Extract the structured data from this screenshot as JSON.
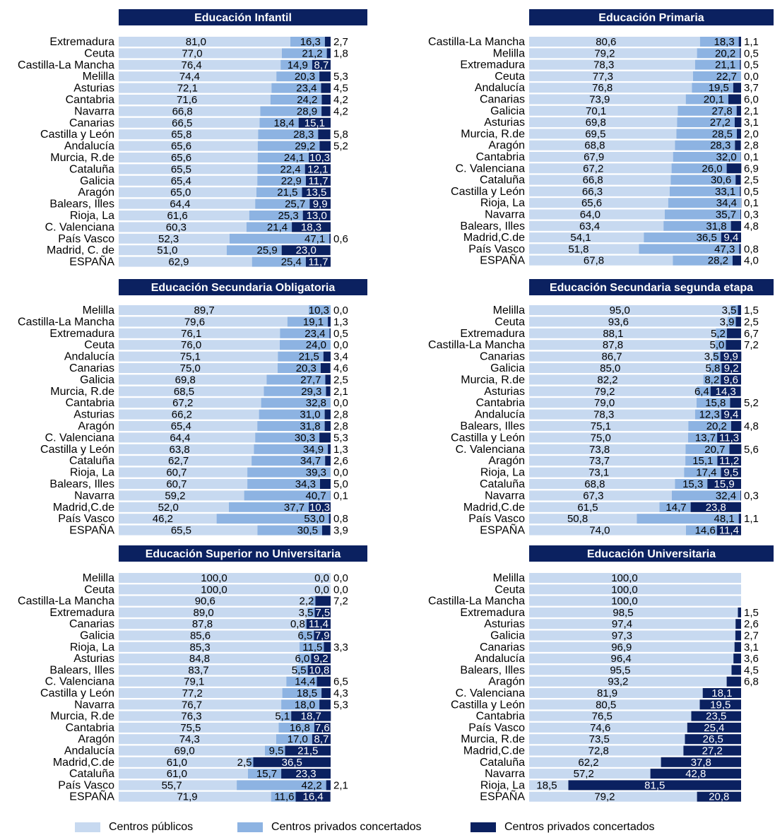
{
  "colors": {
    "publico": "#c7d9f0",
    "concertado": "#8db3e2",
    "privado": "#0b2160",
    "title_bg": "#0b2160",
    "title_text": "#ffffff"
  },
  "legend": [
    {
      "label": "Centros públicos",
      "color": "#c7d9f0"
    },
    {
      "label": "Centros privados concertados",
      "color": "#8db3e2"
    },
    {
      "label": "Centros privados concertados",
      "color": "#0b2160"
    }
  ],
  "chart_data": [
    {
      "type": "bar",
      "stacked": true,
      "orientation": "horizontal",
      "title": "Educación Infantil",
      "series_keys": [
        "publico",
        "concertado",
        "privado"
      ],
      "rows": [
        {
          "label": "Extremadura",
          "values": [
            "81,0",
            "16,3",
            "2,7"
          ]
        },
        {
          "label": "Ceuta",
          "values": [
            "77,0",
            "21,2",
            "1,8"
          ]
        },
        {
          "label": "Castilla-La Mancha",
          "values": [
            "76,4",
            "14,9",
            "8,7"
          ]
        },
        {
          "label": "Melilla",
          "values": [
            "74,4",
            "20,3",
            "5,3"
          ]
        },
        {
          "label": "Asturias",
          "values": [
            "72,1",
            "23,4",
            "4,5"
          ]
        },
        {
          "label": "Cantabria",
          "values": [
            "71,6",
            "24,2",
            "4,2"
          ]
        },
        {
          "label": "Navarra",
          "values": [
            "66,8",
            "28,9",
            "4,2"
          ]
        },
        {
          "label": "Canarias",
          "values": [
            "66,5",
            "18,4",
            "15,1"
          ]
        },
        {
          "label": "Castilla y León",
          "values": [
            "65,8",
            "28,3",
            "5,8"
          ]
        },
        {
          "label": "Andalucía",
          "values": [
            "65,6",
            "29,2",
            "5,2"
          ]
        },
        {
          "label": "Murcia, R.de",
          "values": [
            "65,6",
            "24,1",
            "10,3"
          ]
        },
        {
          "label": "Cataluña",
          "values": [
            "65,5",
            "22,4",
            "12,1"
          ]
        },
        {
          "label": "Galicia",
          "values": [
            "65,4",
            "22,9",
            "11,7"
          ]
        },
        {
          "label": "Aragón",
          "values": [
            "65,0",
            "21,5",
            "13,5"
          ]
        },
        {
          "label": "Balears, Illes",
          "values": [
            "64,4",
            "25,7",
            "9,9"
          ]
        },
        {
          "label": "Rioja, La",
          "values": [
            "61,6",
            "25,3",
            "13,0"
          ]
        },
        {
          "label": "C. Valenciana",
          "values": [
            "60,3",
            "21,4",
            "18,3"
          ]
        },
        {
          "label": "País Vasco",
          "values": [
            "52,3",
            "47,1",
            "0,6"
          ]
        },
        {
          "label": "Madrid, C. de",
          "values": [
            "51,0",
            "25,9",
            "23,0"
          ]
        },
        {
          "label": "ESPAÑA",
          "values": [
            "62,9",
            "25,4",
            "11,7"
          ]
        }
      ]
    },
    {
      "type": "bar",
      "stacked": true,
      "orientation": "horizontal",
      "title": "Educación Primaria",
      "series_keys": [
        "publico",
        "concertado",
        "privado"
      ],
      "rows": [
        {
          "label": "Castilla-La Mancha",
          "values": [
            "80,6",
            "18,3",
            "1,1"
          ]
        },
        {
          "label": "Melilla",
          "values": [
            "79,2",
            "20,2",
            "0,5"
          ]
        },
        {
          "label": "Extremadura",
          "values": [
            "78,3",
            "21,1",
            "0,5"
          ]
        },
        {
          "label": "Ceuta",
          "values": [
            "77,3",
            "22,7",
            "0,0"
          ]
        },
        {
          "label": "Andalucía",
          "values": [
            "76,8",
            "19,5",
            "3,7"
          ]
        },
        {
          "label": "Canarias",
          "values": [
            "73,9",
            "20,1",
            "6,0"
          ]
        },
        {
          "label": "Galicia",
          "values": [
            "70,1",
            "27,8",
            "2,1"
          ]
        },
        {
          "label": "Asturias",
          "values": [
            "69,8",
            "27,2",
            "3,1"
          ]
        },
        {
          "label": "Murcia, R.de",
          "values": [
            "69,5",
            "28,5",
            "2,0"
          ]
        },
        {
          "label": "Aragón",
          "values": [
            "68,8",
            "28,3",
            "2,8"
          ]
        },
        {
          "label": "Cantabria",
          "values": [
            "67,9",
            "32,0",
            "0,1"
          ]
        },
        {
          "label": "C. Valenciana",
          "values": [
            "67,2",
            "26,0",
            "6,9"
          ]
        },
        {
          "label": "Cataluña",
          "values": [
            "66,8",
            "30,6",
            "2,5"
          ]
        },
        {
          "label": "Castilla y León",
          "values": [
            "66,3",
            "33,1",
            "0,5"
          ]
        },
        {
          "label": "Rioja, La",
          "values": [
            "65,6",
            "34,4",
            "0,1"
          ]
        },
        {
          "label": "Navarra",
          "values": [
            "64,0",
            "35,7",
            "0,3"
          ]
        },
        {
          "label": "Balears, Illes",
          "values": [
            "63,4",
            "31,8",
            "4,8"
          ]
        },
        {
          "label": "Madrid,C.de",
          "values": [
            "54,1",
            "36,5",
            "9,4"
          ]
        },
        {
          "label": "País Vasco",
          "values": [
            "51,8",
            "47,3",
            "0,8"
          ]
        },
        {
          "label": "ESPAÑA",
          "values": [
            "67,8",
            "28,2",
            "4,0"
          ]
        }
      ]
    },
    {
      "type": "bar",
      "stacked": true,
      "orientation": "horizontal",
      "title": "Educación Secundaria Obligatoria",
      "series_keys": [
        "publico",
        "concertado",
        "privado"
      ],
      "rows": [
        {
          "label": "Melilla",
          "values": [
            "89,7",
            "10,3",
            "0,0"
          ]
        },
        {
          "label": "Castilla-La Mancha",
          "values": [
            "79,6",
            "19,1",
            "1,3"
          ]
        },
        {
          "label": "Extremadura",
          "values": [
            "76,1",
            "23,4",
            "0,5"
          ]
        },
        {
          "label": "Ceuta",
          "values": [
            "76,0",
            "24,0",
            "0,0"
          ]
        },
        {
          "label": "Andalucía",
          "values": [
            "75,1",
            "21,5",
            "3,4"
          ]
        },
        {
          "label": "Canarias",
          "values": [
            "75,0",
            "20,3",
            "4,6"
          ]
        },
        {
          "label": "Galicia",
          "values": [
            "69,8",
            "27,7",
            "2,5"
          ]
        },
        {
          "label": "Murcia, R.de",
          "values": [
            "68,5",
            "29,3",
            "2,1"
          ]
        },
        {
          "label": "Cantabria",
          "values": [
            "67,2",
            "32,8",
            "0,0"
          ]
        },
        {
          "label": "Asturias",
          "values": [
            "66,2",
            "31,0",
            "2,8"
          ]
        },
        {
          "label": "Aragón",
          "values": [
            "65,4",
            "31,8",
            "2,8"
          ]
        },
        {
          "label": "C. Valenciana",
          "values": [
            "64,4",
            "30,3",
            "5,3"
          ]
        },
        {
          "label": "Castilla y León",
          "values": [
            "63,8",
            "34,9",
            "1,3"
          ]
        },
        {
          "label": "Cataluña",
          "values": [
            "62,7",
            "34,7",
            "2,6"
          ]
        },
        {
          "label": "Rioja, La",
          "values": [
            "60,7",
            "39,3",
            "0,0"
          ]
        },
        {
          "label": "Balears, Illes",
          "values": [
            "60,7",
            "34,3",
            "5,0"
          ]
        },
        {
          "label": "Navarra",
          "values": [
            "59,2",
            "40,7",
            "0,1"
          ]
        },
        {
          "label": "Madrid,C.de",
          "values": [
            "52,0",
            "37,7",
            "10,3"
          ]
        },
        {
          "label": "País Vasco",
          "values": [
            "46,2",
            "53,0",
            "0,8"
          ]
        },
        {
          "label": "ESPAÑA",
          "values": [
            "65,5",
            "30,5",
            "3,9"
          ]
        }
      ]
    },
    {
      "type": "bar",
      "stacked": true,
      "orientation": "horizontal",
      "title": "Educación Secundaria segunda etapa",
      "series_keys": [
        "publico",
        "concertado",
        "privado"
      ],
      "rows": [
        {
          "label": "Melilla",
          "values": [
            "95,0",
            "3,5",
            "1,5"
          ]
        },
        {
          "label": "Ceuta",
          "values": [
            "93,6",
            "3,9",
            "2,5"
          ]
        },
        {
          "label": "Extremadura",
          "values": [
            "88,1",
            "5,2",
            "6,7"
          ]
        },
        {
          "label": "Castilla-La Mancha",
          "values": [
            "87,8",
            "5,0",
            "7,2"
          ]
        },
        {
          "label": "Canarias",
          "values": [
            "86,7",
            "3,5",
            "9,9"
          ]
        },
        {
          "label": "Galicia",
          "values": [
            "85,0",
            "5,8",
            "9,2"
          ]
        },
        {
          "label": "Murcia, R.de",
          "values": [
            "82,2",
            "8,2",
            "9,6"
          ]
        },
        {
          "label": "Asturias",
          "values": [
            "79,2",
            "6,4",
            "14,3"
          ]
        },
        {
          "label": "Cantabria",
          "values": [
            "79,0",
            "15,8",
            "5,2"
          ]
        },
        {
          "label": "Andalucía",
          "values": [
            "78,3",
            "12,3",
            "9,4"
          ]
        },
        {
          "label": "Balears, Illes",
          "values": [
            "75,1",
            "20,2",
            "4,8"
          ]
        },
        {
          "label": "Castilla y León",
          "values": [
            "75,0",
            "13,7",
            "11,3"
          ]
        },
        {
          "label": "C. Valenciana",
          "values": [
            "73,8",
            "20,7",
            "5,6"
          ]
        },
        {
          "label": "Aragón",
          "values": [
            "73,7",
            "15,1",
            "11,2"
          ]
        },
        {
          "label": "Rioja, La",
          "values": [
            "73,1",
            "17,4",
            "9,5"
          ]
        },
        {
          "label": "Cataluña",
          "values": [
            "68,8",
            "15,3",
            "15,9"
          ]
        },
        {
          "label": "Navarra",
          "values": [
            "67,3",
            "32,4",
            "0,3"
          ]
        },
        {
          "label": "Madrid,C.de",
          "values": [
            "61,5",
            "14,7",
            "23,8"
          ]
        },
        {
          "label": "País Vasco",
          "values": [
            "50,8",
            "48,1",
            "1,1"
          ]
        },
        {
          "label": "ESPAÑA",
          "values": [
            "74,0",
            "14,6",
            "11,4"
          ]
        }
      ]
    },
    {
      "type": "bar",
      "stacked": true,
      "orientation": "horizontal",
      "title": "Educación Superior no Universitaria",
      "series_keys": [
        "publico",
        "concertado",
        "privado"
      ],
      "rows": [
        {
          "label": "Melilla",
          "values": [
            "100,0",
            "0,0",
            "0,0"
          ]
        },
        {
          "label": "Ceuta",
          "values": [
            "100,0",
            "0,0",
            "0,0"
          ]
        },
        {
          "label": "Castilla-La Mancha",
          "values": [
            "90,6",
            "2,2",
            "7,2"
          ]
        },
        {
          "label": "Extremadura",
          "values": [
            "89,0",
            "3,5",
            "7,5"
          ]
        },
        {
          "label": "Canarias",
          "values": [
            "87,8",
            "0,8",
            "11,4"
          ]
        },
        {
          "label": "Galicia",
          "values": [
            "85,6",
            "6,5",
            "7,9"
          ]
        },
        {
          "label": "Rioja, La",
          "values": [
            "85,3",
            "11,5",
            "3,3"
          ]
        },
        {
          "label": "Asturias",
          "values": [
            "84,8",
            "6,0",
            "9,2"
          ]
        },
        {
          "label": "Balears, Illes",
          "values": [
            "83,7",
            "5,5",
            "10,8"
          ]
        },
        {
          "label": "C. Valenciana",
          "values": [
            "79,1",
            "14,4",
            "6,5"
          ]
        },
        {
          "label": "Castilla y León",
          "values": [
            "77,2",
            "18,5",
            "4,3"
          ]
        },
        {
          "label": "Navarra",
          "values": [
            "76,7",
            "18,0",
            "5,3"
          ]
        },
        {
          "label": "Murcia, R.de",
          "values": [
            "76,3",
            "5,1",
            "18,7"
          ]
        },
        {
          "label": "Cantabria",
          "values": [
            "75,5",
            "16,8",
            "7,6"
          ]
        },
        {
          "label": "Aragón",
          "values": [
            "74,3",
            "17,0",
            "8,7"
          ]
        },
        {
          "label": "Andalucía",
          "values": [
            "69,0",
            "9,5",
            "21,5"
          ]
        },
        {
          "label": "Madrid,C.de",
          "values": [
            "61,0",
            "2,5",
            "36,5"
          ]
        },
        {
          "label": "Cataluña",
          "values": [
            "61,0",
            "15,7",
            "23,3"
          ]
        },
        {
          "label": "País Vasco",
          "values": [
            "55,7",
            "42,2",
            "2,1"
          ]
        },
        {
          "label": "ESPAÑA",
          "values": [
            "71,9",
            "11,6",
            "16,4"
          ]
        }
      ]
    },
    {
      "type": "bar",
      "stacked": true,
      "orientation": "horizontal",
      "title": "Educación Universitaria",
      "series_keys": [
        "publico",
        "privado"
      ],
      "rows": [
        {
          "label": "Melilla",
          "values": [
            "100,0",
            ""
          ]
        },
        {
          "label": "Ceuta",
          "values": [
            "100,0",
            ""
          ]
        },
        {
          "label": "Castilla-La Mancha",
          "values": [
            "100,0",
            ""
          ]
        },
        {
          "label": "Extremadura",
          "values": [
            "98,5",
            "1,5"
          ]
        },
        {
          "label": "Asturias",
          "values": [
            "97,4",
            "2,6"
          ]
        },
        {
          "label": "Galicia",
          "values": [
            "97,3",
            "2,7"
          ]
        },
        {
          "label": "Canarias",
          "values": [
            "96,9",
            "3,1"
          ]
        },
        {
          "label": "Andalucía",
          "values": [
            "96,4",
            "3,6"
          ]
        },
        {
          "label": "Balears, Illes",
          "values": [
            "95,5",
            "4,5"
          ]
        },
        {
          "label": "Aragón",
          "values": [
            "93,2",
            "6,8"
          ]
        },
        {
          "label": "C. Valenciana",
          "values": [
            "81,9",
            "18,1"
          ]
        },
        {
          "label": "Castilla y León",
          "values": [
            "80,5",
            "19,5"
          ]
        },
        {
          "label": "Cantabria",
          "values": [
            "76,5",
            "23,5"
          ]
        },
        {
          "label": "País Vasco",
          "values": [
            "74,6",
            "25,4"
          ]
        },
        {
          "label": "Murcia, R.de",
          "values": [
            "73,5",
            "26,5"
          ]
        },
        {
          "label": "Madrid,C.de",
          "values": [
            "72,8",
            "27,2"
          ]
        },
        {
          "label": "Cataluña",
          "values": [
            "62,2",
            "37,8"
          ]
        },
        {
          "label": "Navarra",
          "values": [
            "57,2",
            "42,8"
          ]
        },
        {
          "label": "Rioja, La",
          "values": [
            "18,5",
            "81,5"
          ]
        },
        {
          "label": "ESPAÑA",
          "values": [
            "79,2",
            "20,8"
          ]
        }
      ]
    }
  ]
}
